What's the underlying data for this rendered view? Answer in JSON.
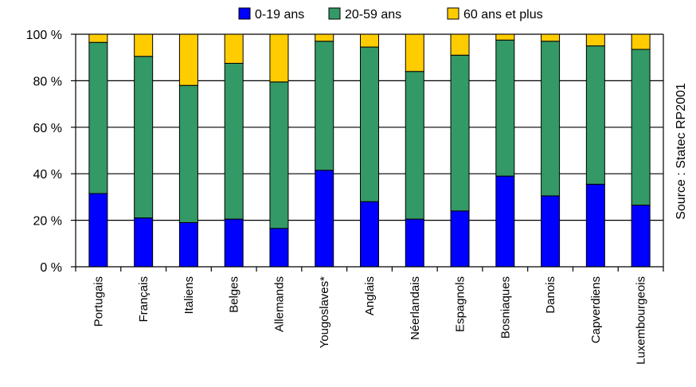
{
  "chart_data": {
    "type": "bar",
    "stacked": true,
    "categories": [
      "Portugais",
      "Français",
      "Italiens",
      "Belges",
      "Allemands",
      "Yougoslaves*",
      "Anglais",
      "Néerlandais",
      "Espagnols",
      "Bosniaques",
      "Danois",
      "Capverdiens",
      "Luxembourgeois"
    ],
    "series": [
      {
        "name": "0-19 ans",
        "color": "#0000ff",
        "values": [
          31.5,
          21,
          19,
          20.5,
          16.5,
          41.5,
          28,
          20.5,
          24,
          39,
          30.5,
          35.5,
          26.5
        ]
      },
      {
        "name": "20-59 ans",
        "color": "#339966",
        "values": [
          65,
          69.5,
          59,
          67,
          63,
          55.5,
          66.5,
          63.5,
          67,
          58.5,
          66.5,
          59.5,
          67
        ]
      },
      {
        "name": "60 ans et plus",
        "color": "#ffcc00",
        "values": [
          3.5,
          9.5,
          22,
          12.5,
          20.5,
          3,
          5.5,
          16,
          9,
          2.5,
          3,
          5,
          6.5
        ]
      }
    ],
    "ylim": [
      0,
      100
    ],
    "yticks": [
      "0 %",
      "20 %",
      "40 %",
      "60 %",
      "80 %",
      "100 %"
    ],
    "grid": true,
    "legend_position": "top",
    "source": "Source : Statec RP2001"
  }
}
